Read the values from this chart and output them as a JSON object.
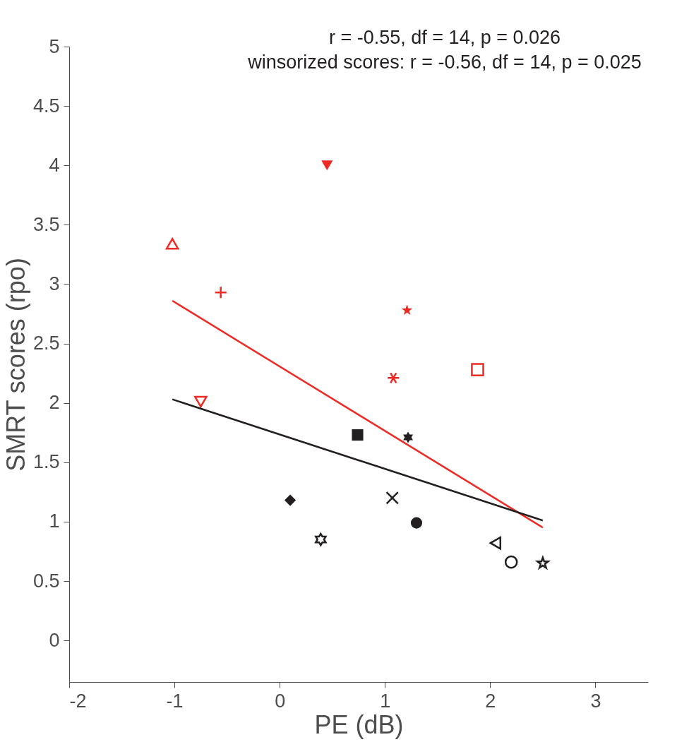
{
  "chart_data": {
    "type": "scatter",
    "xlabel": "PE (dB)",
    "ylabel": "SMRT scores (rpo)",
    "annotations": [
      "r = -0.55, df = 14, p = 0.026",
      "winsorized scores: r = -0.56, df = 14, p = 0.025"
    ],
    "xlim": [
      -2,
      3.5
    ],
    "ylim": [
      -0.35,
      5
    ],
    "xticks": [
      -2,
      -1,
      0,
      1,
      2,
      3
    ],
    "yticks": [
      0,
      0.5,
      1,
      1.5,
      2,
      2.5,
      3,
      3.5,
      4,
      4.5,
      5
    ],
    "grid": false,
    "series": [
      {
        "type": "scatter",
        "color": "#ee2a24",
        "marker": "triangle-up-open",
        "x": [
          -1.02
        ],
        "values": [
          3.34
        ]
      },
      {
        "type": "scatter",
        "color": "#ee2a24",
        "marker": "triangle-down",
        "x": [
          0.45
        ],
        "values": [
          4.0
        ]
      },
      {
        "type": "scatter",
        "color": "#ee2a24",
        "marker": "plus",
        "x": [
          -0.56
        ],
        "values": [
          2.93
        ]
      },
      {
        "type": "scatter",
        "color": "#ee2a24",
        "marker": "star-5",
        "x": [
          1.21
        ],
        "values": [
          2.78
        ]
      },
      {
        "type": "scatter",
        "color": "#ee2a24",
        "marker": "cross",
        "x": [
          1.08
        ],
        "values": [
          2.21
        ]
      },
      {
        "type": "scatter",
        "color": "#ee2a24",
        "marker": "square-open",
        "x": [
          1.88
        ],
        "values": [
          2.28
        ]
      },
      {
        "type": "scatter",
        "color": "#ee2a24",
        "marker": "triangle-down-open",
        "x": [
          -0.75
        ],
        "values": [
          2.01
        ]
      },
      {
        "type": "scatter",
        "color": "#231f20",
        "marker": "square",
        "x": [
          0.74
        ],
        "values": [
          1.73
        ]
      },
      {
        "type": "scatter",
        "color": "#231f20",
        "marker": "cross-filled",
        "x": [
          1.22
        ],
        "values": [
          1.71
        ]
      },
      {
        "type": "scatter",
        "color": "#231f20",
        "marker": "diamond",
        "x": [
          0.1
        ],
        "values": [
          1.18
        ]
      },
      {
        "type": "scatter",
        "color": "#231f20",
        "marker": "x",
        "x": [
          1.07
        ],
        "values": [
          1.2
        ]
      },
      {
        "type": "scatter",
        "color": "#231f20",
        "marker": "circle",
        "x": [
          1.3
        ],
        "values": [
          0.99
        ]
      },
      {
        "type": "scatter",
        "color": "#231f20",
        "marker": "cross-open",
        "x": [
          0.39
        ],
        "values": [
          0.85
        ]
      },
      {
        "type": "scatter",
        "color": "#231f20",
        "marker": "triangle-left-open",
        "x": [
          2.05
        ],
        "values": [
          0.82
        ]
      },
      {
        "type": "scatter",
        "color": "#231f20",
        "marker": "circle-open",
        "x": [
          2.2
        ],
        "values": [
          0.66
        ]
      },
      {
        "type": "scatter",
        "color": "#231f20",
        "marker": "star-5-open",
        "x": [
          2.5
        ],
        "values": [
          0.65
        ]
      },
      {
        "type": "line",
        "color": "#ee2a24",
        "line_style": "solid",
        "marker": "none",
        "x": [
          -1.02,
          2.5
        ],
        "values": [
          2.86,
          0.95
        ]
      },
      {
        "type": "line",
        "color": "#231f20",
        "line_style": "solid",
        "marker": "none",
        "x": [
          -1.02,
          2.5
        ],
        "values": [
          2.03,
          1.01
        ]
      }
    ]
  }
}
